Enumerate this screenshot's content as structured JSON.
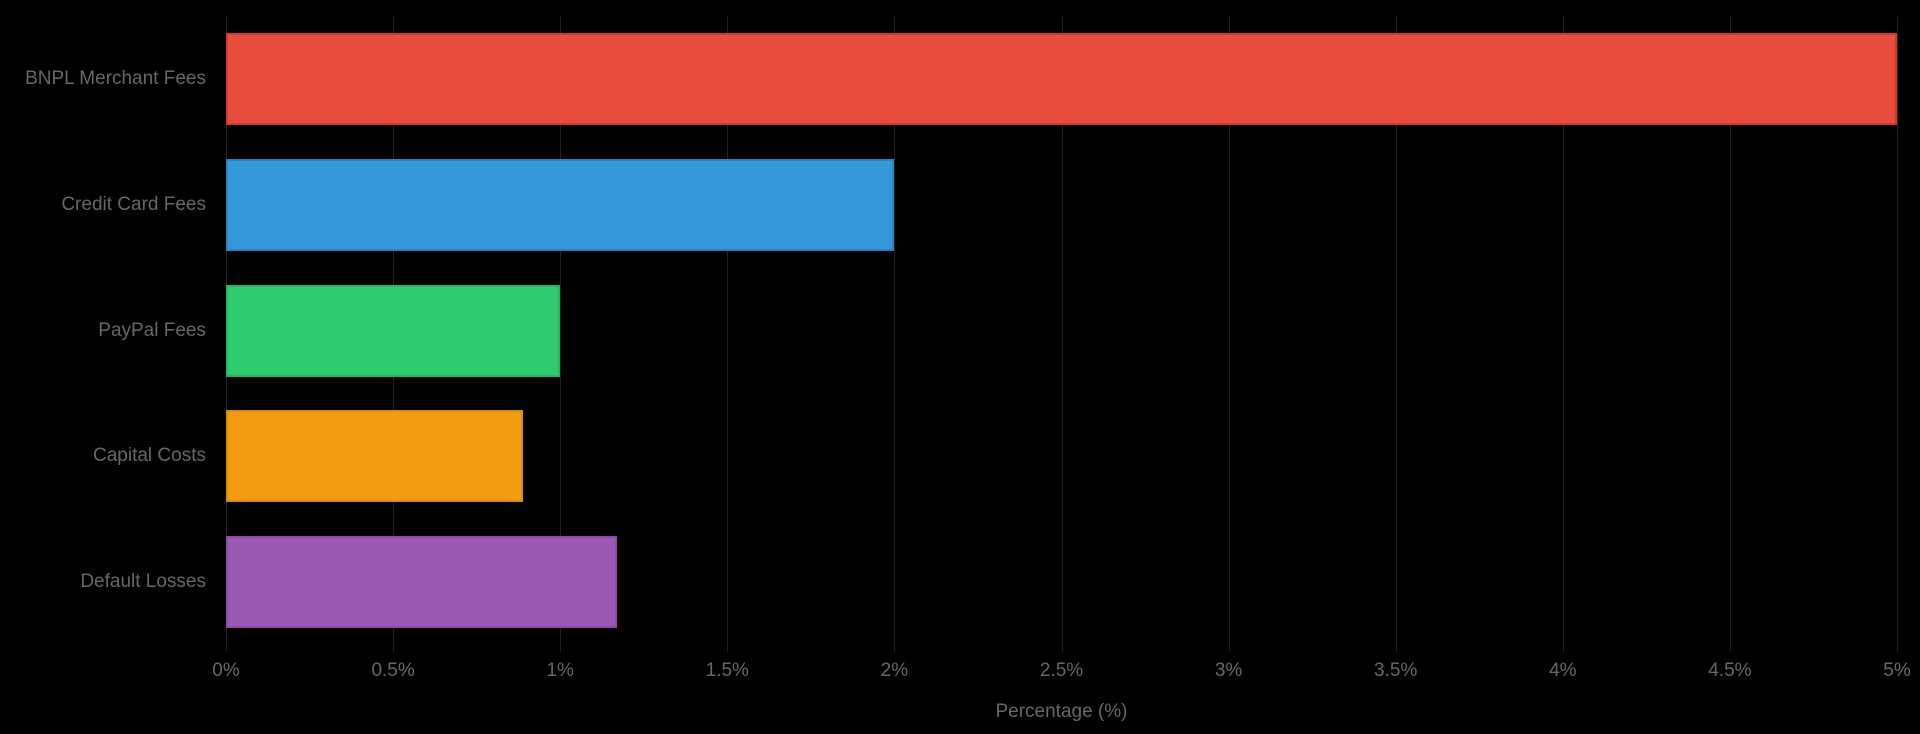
{
  "chart_data": {
    "type": "bar",
    "orientation": "horizontal",
    "title": "",
    "xlabel": "Percentage (%)",
    "ylabel": "",
    "xlim": [
      0,
      5
    ],
    "grid": "vertical",
    "legend": "none",
    "categories": [
      "BNPL Merchant Fees",
      "Credit Card Fees",
      "PayPal Fees",
      "Capital Costs",
      "Default Losses"
    ],
    "values": [
      5.0,
      2.0,
      1.0,
      0.89,
      1.17
    ],
    "bar_colors": [
      "#e74c3c",
      "#3498db",
      "#2ecc71",
      "#f39c12",
      "#9b59b6"
    ],
    "bar_border_colors": [
      "#cf3a2c",
      "#2a83c0",
      "#27b564",
      "#d88b10",
      "#8a4da3"
    ],
    "x_ticks": [
      {
        "value": 0,
        "label": "0%"
      },
      {
        "value": 0.5,
        "label": "0.5%"
      },
      {
        "value": 1,
        "label": "1%"
      },
      {
        "value": 1.5,
        "label": "1.5%"
      },
      {
        "value": 2,
        "label": "2%"
      },
      {
        "value": 2.5,
        "label": "2.5%"
      },
      {
        "value": 3,
        "label": "3%"
      },
      {
        "value": 3.5,
        "label": "3.5%"
      },
      {
        "value": 4,
        "label": "4%"
      },
      {
        "value": 4.5,
        "label": "4.5%"
      },
      {
        "value": 5,
        "label": "5%"
      }
    ]
  },
  "colors": {
    "background": "#000000",
    "label_text": "#666666",
    "tick_text": "#666666",
    "gridline": "#222222"
  }
}
